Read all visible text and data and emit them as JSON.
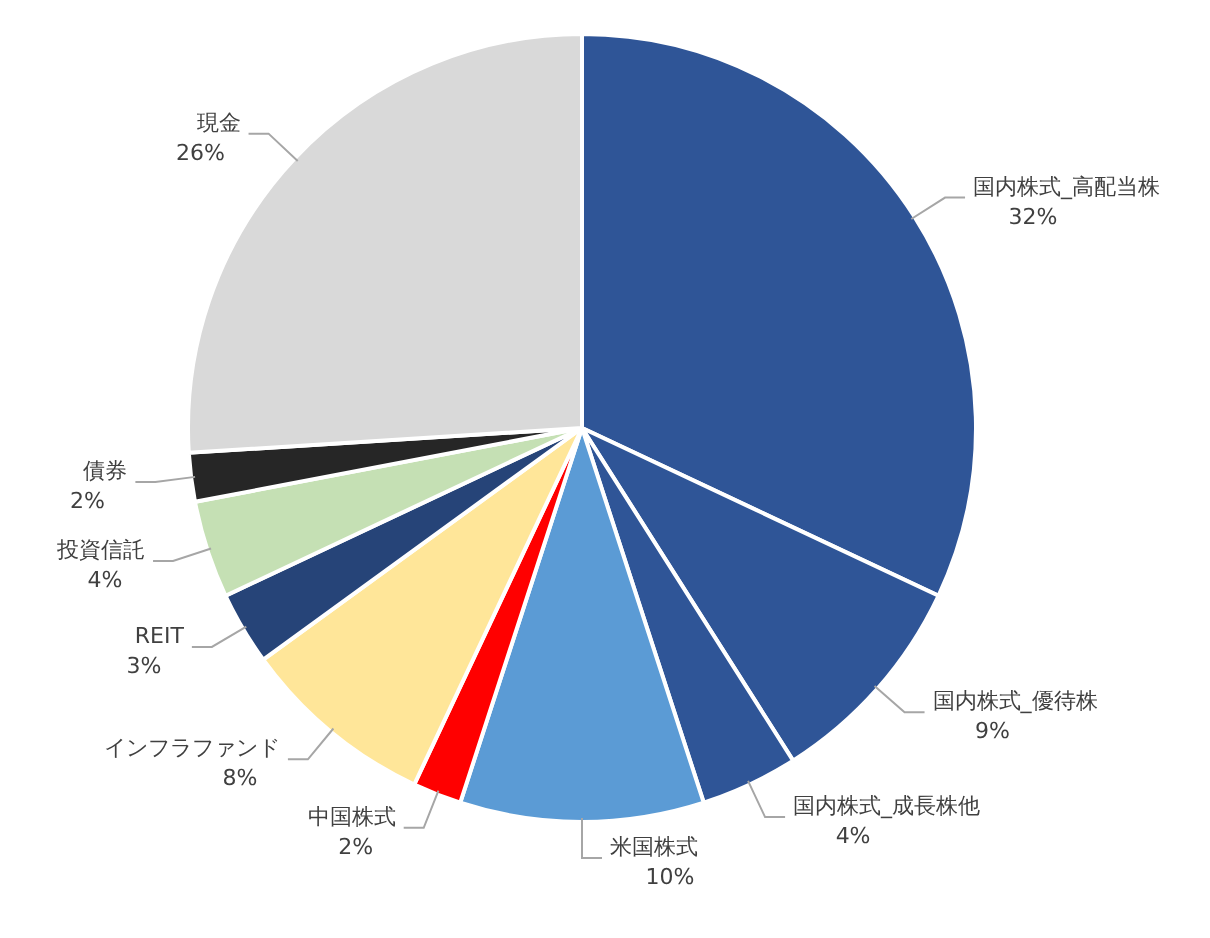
{
  "chart_data": {
    "type": "pie",
    "categories": [
      "国内株式_高配当株",
      "国内株式_優待株",
      "国内株式_成長株他",
      "米国株式",
      "中国株式",
      "インフラファンド",
      "REIT",
      "投資信託",
      "債券",
      "現金"
    ],
    "values": [
      32,
      9,
      4,
      10,
      2,
      8,
      3,
      4,
      2,
      26
    ],
    "value_labels": [
      "32%",
      "9%",
      "4%",
      "10%",
      "2%",
      "8%",
      "3%",
      "4%",
      "2%",
      "26%"
    ],
    "colors": [
      "#2f5597",
      "#2f5597",
      "#2f5597",
      "#5b9bd5",
      "#ff0000",
      "#ffe699",
      "#264478",
      "#c5e0b4",
      "#262626",
      "#d9d9d9"
    ]
  }
}
